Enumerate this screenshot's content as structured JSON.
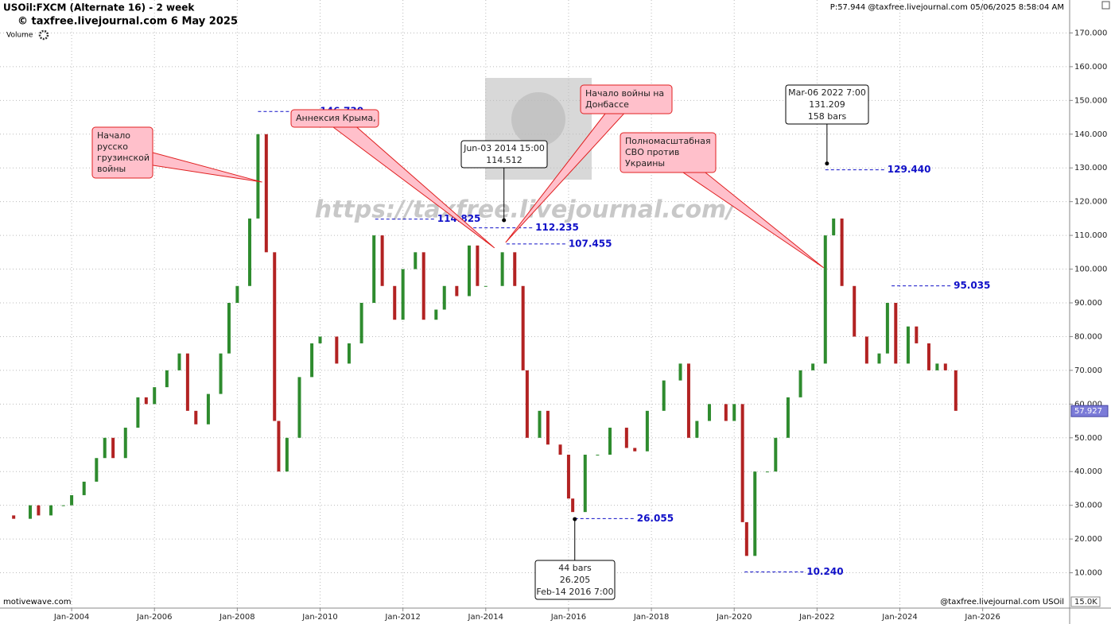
{
  "header": {
    "title": "USOil:FXCM (Alternate 16) - 2 week",
    "subtitle": "© taxfree.livejournal.com  6 May 2025",
    "volume_label": "Volume",
    "status": "P:57.944  @taxfree.livejournal.com  05/06/2025 8:58:04 AM"
  },
  "chart_data": {
    "type": "candlestick",
    "x": [
      2002.3,
      2002.6,
      2003.0,
      2003.2,
      2003.5,
      2003.8,
      2004.0,
      2004.3,
      2004.6,
      2004.8,
      2005.0,
      2005.3,
      2005.6,
      2005.8,
      2006.0,
      2006.3,
      2006.6,
      2006.8,
      2007.0,
      2007.3,
      2007.6,
      2007.8,
      2008.0,
      2008.3,
      2008.5,
      2008.7,
      2008.9,
      2009.0,
      2009.2,
      2009.5,
      2009.8,
      2010.0,
      2010.4,
      2010.7,
      2011.0,
      2011.3,
      2011.5,
      2011.8,
      2012.0,
      2012.3,
      2012.5,
      2012.8,
      2013.0,
      2013.3,
      2013.6,
      2013.8,
      2014.0,
      2014.4,
      2014.7,
      2014.9,
      2015.0,
      2015.3,
      2015.5,
      2015.8,
      2016.0,
      2016.1,
      2016.4,
      2016.7,
      2017.0,
      2017.4,
      2017.6,
      2017.9,
      2018.3,
      2018.7,
      2018.9,
      2019.1,
      2019.4,
      2019.8,
      2020.0,
      2020.2,
      2020.3,
      2020.5,
      2020.8,
      2021.0,
      2021.3,
      2021.6,
      2021.9,
      2022.2,
      2022.4,
      2022.6,
      2022.9,
      2023.2,
      2023.5,
      2023.7,
      2023.9,
      2024.2,
      2024.4,
      2024.7,
      2024.9,
      2025.1,
      2025.35
    ],
    "values": [
      27,
      26,
      30,
      27,
      30,
      30,
      33,
      37,
      44,
      50,
      44,
      53,
      62,
      60,
      65,
      70,
      75,
      58,
      54,
      63,
      75,
      90,
      95,
      115,
      140,
      105,
      55,
      40,
      50,
      68,
      78,
      80,
      72,
      78,
      90,
      110,
      95,
      85,
      100,
      105,
      85,
      88,
      95,
      92,
      107,
      95,
      95,
      105,
      95,
      70,
      50,
      58,
      48,
      45,
      32,
      28,
      45,
      45,
      53,
      47,
      46,
      58,
      67,
      72,
      50,
      55,
      60,
      55,
      60,
      25,
      15,
      40,
      40,
      50,
      62,
      70,
      72,
      110,
      115,
      95,
      80,
      72,
      75,
      90,
      72,
      83,
      78,
      70,
      72,
      70,
      58
    ],
    "up_color": "#2e8b2e",
    "down_color": "#b22222",
    "xlim": [
      2002.27,
      2028.1
    ],
    "xticks": [
      {
        "value": 2004,
        "label": "Jan-2004"
      },
      {
        "value": 2006,
        "label": "Jan-2006"
      },
      {
        "value": 2008,
        "label": "Jan-2008"
      },
      {
        "value": 2010,
        "label": "Jan-2010"
      },
      {
        "value": 2012,
        "label": "Jan-2012"
      },
      {
        "value": 2014,
        "label": "Jan-2014"
      },
      {
        "value": 2016,
        "label": "Jan-2016"
      },
      {
        "value": 2018,
        "label": "Jan-2018"
      },
      {
        "value": 2020,
        "label": "Jan-2020"
      },
      {
        "value": 2022,
        "label": "Jan-2022"
      },
      {
        "value": 2024,
        "label": "Jan-2024"
      },
      {
        "value": 2026,
        "label": "Jan-2026"
      }
    ],
    "ylim": [
      0,
      180
    ],
    "yticks": [
      {
        "value": 10,
        "label": "10.000"
      },
      {
        "value": 20,
        "label": "20.000"
      },
      {
        "value": 30,
        "label": "30.000"
      },
      {
        "value": 40,
        "label": "40.000"
      },
      {
        "value": 50,
        "label": "50.000"
      },
      {
        "value": 60,
        "label": "60.000"
      },
      {
        "value": 70,
        "label": "70.000"
      },
      {
        "value": 80,
        "label": "80.000"
      },
      {
        "value": 90,
        "label": "90.000"
      },
      {
        "value": 100,
        "label": "100.000"
      },
      {
        "value": 110,
        "label": "110.000"
      },
      {
        "value": 120,
        "label": "120.000"
      },
      {
        "value": 130,
        "label": "130.000"
      },
      {
        "value": 140,
        "label": "140.000"
      },
      {
        "value": 150,
        "label": "150.000"
      },
      {
        "value": 160,
        "label": "160.000"
      },
      {
        "value": 170,
        "label": "170.000"
      }
    ],
    "grid": true,
    "levels": [
      {
        "x": 2008.5,
        "value": 146.73,
        "label": "146.730"
      },
      {
        "x": 2011.33,
        "value": 114.825,
        "label": "114.825"
      },
      {
        "x": 2013.7,
        "value": 112.235,
        "label": "112.235"
      },
      {
        "x": 2014.5,
        "value": 107.455,
        "label": "107.455"
      },
      {
        "x": 2022.2,
        "value": 129.44,
        "label": "129.440"
      },
      {
        "x": 2023.8,
        "value": 95.035,
        "label": "95.035"
      },
      {
        "x": 2016.15,
        "value": 26.055,
        "label": "26.055"
      },
      {
        "x": 2020.25,
        "value": 10.24,
        "label": "10.240"
      }
    ],
    "info_boxes": [
      {
        "x": 2014.44,
        "value": 114.5,
        "lines": [
          "Jun-03 2014 15:00",
          "114.512"
        ]
      },
      {
        "x": 2022.24,
        "value": 131.3,
        "lines": [
          "Mar-06 2022 7:00",
          "131.209",
          "158 bars"
        ]
      },
      {
        "x": 2016.15,
        "value": 25.9,
        "lines": [
          "44 bars",
          "26.205",
          "Feb-14 2016 7:00"
        ]
      }
    ],
    "callouts": [
      {
        "x": 2008.6,
        "value": 125.8,
        "lines": [
          "Начало",
          "русско",
          "грузинской",
          "войны"
        ]
      },
      {
        "x": 2014.21,
        "value": 106.3,
        "lines": [
          "Аннексия Крыма,"
        ]
      },
      {
        "x": 2014.48,
        "value": 107.9,
        "lines": [
          "Начало войны на",
          "Донбассе"
        ]
      },
      {
        "x": 2022.16,
        "value": 100.4,
        "lines": [
          "Полномасштабная",
          "СВО против",
          "Украины"
        ]
      }
    ],
    "watermark": "https://taxfree.livejournal.com/",
    "price_tag": {
      "value": 57.927,
      "label": "57.927"
    },
    "volume_axis_label": "15.0K",
    "footer_left": "motivewave.com",
    "footer_right": "@taxfree.livejournal.com  USOil"
  }
}
